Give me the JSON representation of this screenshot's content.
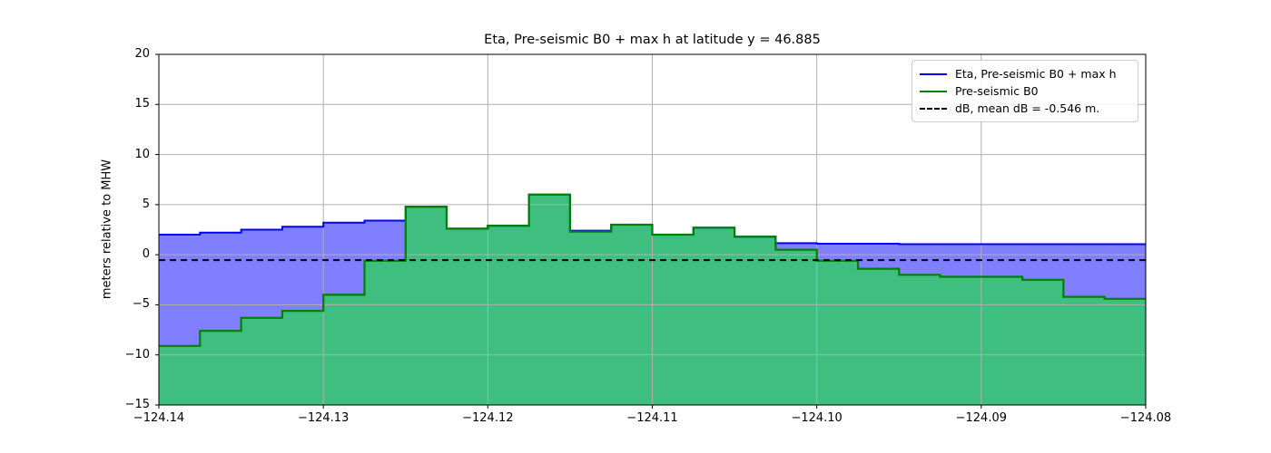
{
  "title": "Eta, Pre-seismic B0 + max h at latitude y = 46.885",
  "ylabel": "meters relative to MHW",
  "legend": {
    "items": [
      {
        "label": "Eta, Pre-seismic B0 + max h",
        "color": "#0000ff",
        "style": "solid"
      },
      {
        "label": "Pre-seismic B0",
        "color": "#008000",
        "style": "solid"
      },
      {
        "label": "dB, mean dB = -0.546 m.",
        "color": "#000000",
        "style": "dashed"
      }
    ]
  },
  "colors": {
    "eta_line": "#0000ff",
    "eta_fill": "rgba(0,0,255,0.5)",
    "b0_line": "#008000",
    "b0_fill": "rgba(0,255,0,0.5)",
    "db_line": "#000000",
    "grid": "#b0b0b0",
    "spine": "#000000"
  },
  "chart_data": {
    "type": "area",
    "subtype": "step-post",
    "title": "Eta, Pre-seismic B0 + max h at latitude y = 46.885",
    "xlabel": "",
    "ylabel": "meters relative to MHW",
    "xlim": [
      -124.14,
      -124.08
    ],
    "ylim": [
      -15,
      20
    ],
    "grid": true,
    "legend_position": "upper right",
    "x_edges": [
      -124.14,
      -124.1375,
      -124.135,
      -124.1325,
      -124.13,
      -124.1275,
      -124.125,
      -124.1225,
      -124.12,
      -124.1175,
      -124.115,
      -124.1125,
      -124.11,
      -124.1075,
      -124.105,
      -124.1025,
      -124.1,
      -124.0975,
      -124.095,
      -124.0925,
      -124.09,
      -124.0875,
      -124.085,
      -124.0825,
      -124.08
    ],
    "series": [
      {
        "name": "Eta, Pre-seismic B0 + max h",
        "values": [
          2.0,
          2.2,
          2.5,
          2.8,
          3.2,
          3.4,
          4.8,
          2.6,
          2.9,
          6.0,
          2.4,
          3.0,
          2.0,
          2.7,
          1.8,
          1.15,
          1.1,
          1.1,
          1.05,
          1.05,
          1.05,
          1.05,
          1.05,
          1.05
        ]
      },
      {
        "name": "Pre-seismic B0",
        "values": [
          -9.1,
          -7.6,
          -6.3,
          -5.6,
          -4.0,
          -0.6,
          4.8,
          2.6,
          2.9,
          6.0,
          2.3,
          3.0,
          2.0,
          2.7,
          1.8,
          0.5,
          -0.6,
          -1.4,
          -2.0,
          -2.2,
          -2.2,
          -2.5,
          -4.2,
          -4.4
        ]
      },
      {
        "name": "dB, mean dB = -0.546 m.",
        "type": "hline",
        "value": -0.546
      }
    ],
    "xticks": [
      {
        "value": -124.14,
        "label": "−124.14"
      },
      {
        "value": -124.13,
        "label": "−124.13"
      },
      {
        "value": -124.12,
        "label": "−124.12"
      },
      {
        "value": -124.11,
        "label": "−124.11"
      },
      {
        "value": -124.1,
        "label": "−124.10"
      },
      {
        "value": -124.09,
        "label": "−124.09"
      },
      {
        "value": -124.08,
        "label": "−124.08"
      }
    ],
    "yticks": [
      {
        "value": -15,
        "label": "−15"
      },
      {
        "value": -10,
        "label": "−10"
      },
      {
        "value": -5,
        "label": "−5"
      },
      {
        "value": 0,
        "label": "0"
      },
      {
        "value": 5,
        "label": "5"
      },
      {
        "value": 10,
        "label": "10"
      },
      {
        "value": 15,
        "label": "15"
      },
      {
        "value": 20,
        "label": "20"
      }
    ]
  }
}
